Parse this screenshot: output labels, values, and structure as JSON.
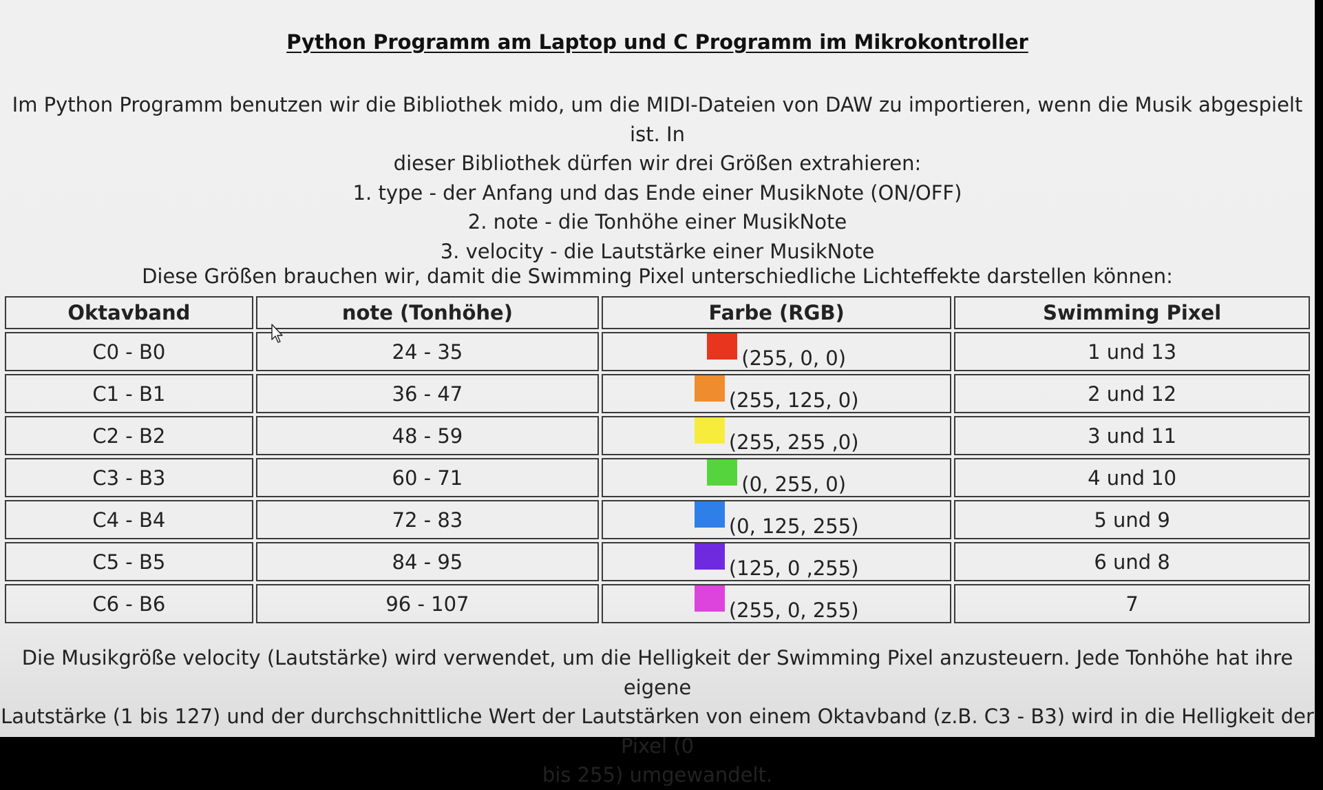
{
  "title": "Python Programm am Laptop und C Programm im Mikrokontroller",
  "intro": {
    "lines": [
      "Im Python Programm benutzen wir die Bibliothek mido, um die MIDI-Dateien von DAW zu importieren, wenn die Musik abgespielt ist. In",
      "dieser Bibliothek dürfen wir drei Größen extrahieren:",
      "1. type - der Anfang und das Ende einer MusikNote (ON/OFF)",
      "2. note - die Tonhöhe einer MusikNote",
      "3. velocity - die Lautstärke einer MusikNote"
    ]
  },
  "lead": "Diese Größen brauchen wir, damit die Swimming Pixel unterschiedliche Lichteffekte darstellen können:",
  "table": {
    "headers": [
      "Oktavband",
      "note (Tonhöhe)",
      "Farbe (RGB)",
      "Swimming Pixel"
    ],
    "rows": [
      {
        "band": "C0 - B0",
        "note": "24 - 35",
        "rgb": "(255, 0, 0)",
        "color": "#e8351e",
        "pixel": "1 und 13"
      },
      {
        "band": "C1 - B1",
        "note": "36 - 47",
        "rgb": "(255, 125, 0)",
        "color": "#ef8c2e",
        "pixel": "2 und 12"
      },
      {
        "band": "C2 - B2",
        "note": "48 - 59",
        "rgb": "(255, 255 ,0)",
        "color": "#f7ec3c",
        "pixel": "3 und 11"
      },
      {
        "band": "C3 - B3",
        "note": "60 - 71",
        "rgb": "(0, 255, 0)",
        "color": "#56d43e",
        "pixel": "4 und 10"
      },
      {
        "band": "C4 - B4",
        "note": "72 - 83",
        "rgb": "(0, 125, 255)",
        "color": "#2e7fe8",
        "pixel": "5 und 9"
      },
      {
        "band": "C5 - B5",
        "note": "84 - 95",
        "rgb": "(125, 0 ,255)",
        "color": "#6f2ae0",
        "pixel": "6 und 8"
      },
      {
        "band": "C6 - B6",
        "note": "96 - 107",
        "rgb": "(255, 0, 255)",
        "color": "#dd44dd",
        "pixel": "7"
      }
    ]
  },
  "footer": {
    "lines": [
      "Die Musikgröße velocity (Lautstärke) wird verwendet, um die Helligkeit der Swimming Pixel anzusteuern. Jede Tonhöhe hat ihre eigene",
      "Lautstärke (1 bis 127) und der durchschnittliche Wert der Lautstärken von einem Oktavband (z.B. C3 - B3) wird in die Helligkeit der Pixel (0",
      "bis 255) umgewandelt."
    ]
  },
  "icons": {
    "cursor": "mouse-pointer-icon"
  }
}
